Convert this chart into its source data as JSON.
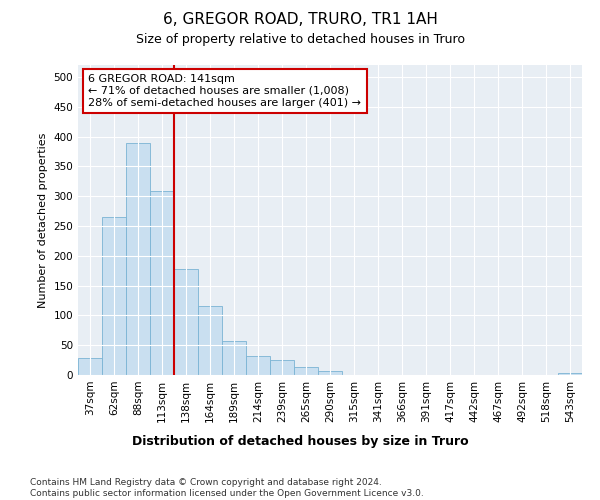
{
  "title1": "6, GREGOR ROAD, TRURO, TR1 1AH",
  "title2": "Size of property relative to detached houses in Truro",
  "xlabel": "Distribution of detached houses by size in Truro",
  "ylabel": "Number of detached properties",
  "categories": [
    "37sqm",
    "62sqm",
    "88sqm",
    "113sqm",
    "138sqm",
    "164sqm",
    "189sqm",
    "214sqm",
    "239sqm",
    "265sqm",
    "290sqm",
    "315sqm",
    "341sqm",
    "366sqm",
    "391sqm",
    "417sqm",
    "442sqm",
    "467sqm",
    "492sqm",
    "518sqm",
    "543sqm"
  ],
  "values": [
    28,
    265,
    390,
    308,
    178,
    115,
    57,
    32,
    25,
    13,
    6,
    0,
    0,
    0,
    0,
    0,
    0,
    0,
    0,
    0,
    3
  ],
  "bar_color": "#c9dff0",
  "bar_edge_color": "#7ab3d4",
  "vline_x_idx": 4,
  "vline_color": "#cc0000",
  "annotation_text": "6 GREGOR ROAD: 141sqm\n← 71% of detached houses are smaller (1,008)\n28% of semi-detached houses are larger (401) →",
  "annotation_box_color": "#ffffff",
  "annotation_box_edge": "#cc0000",
  "ylim": [
    0,
    520
  ],
  "yticks": [
    0,
    50,
    100,
    150,
    200,
    250,
    300,
    350,
    400,
    450,
    500
  ],
  "bg_color": "#e8eef4",
  "footer_text": "Contains HM Land Registry data © Crown copyright and database right 2024.\nContains public sector information licensed under the Open Government Licence v3.0.",
  "title1_fontsize": 11,
  "title2_fontsize": 9,
  "xlabel_fontsize": 9,
  "ylabel_fontsize": 8,
  "tick_fontsize": 7.5,
  "annot_fontsize": 8,
  "footer_fontsize": 6.5
}
